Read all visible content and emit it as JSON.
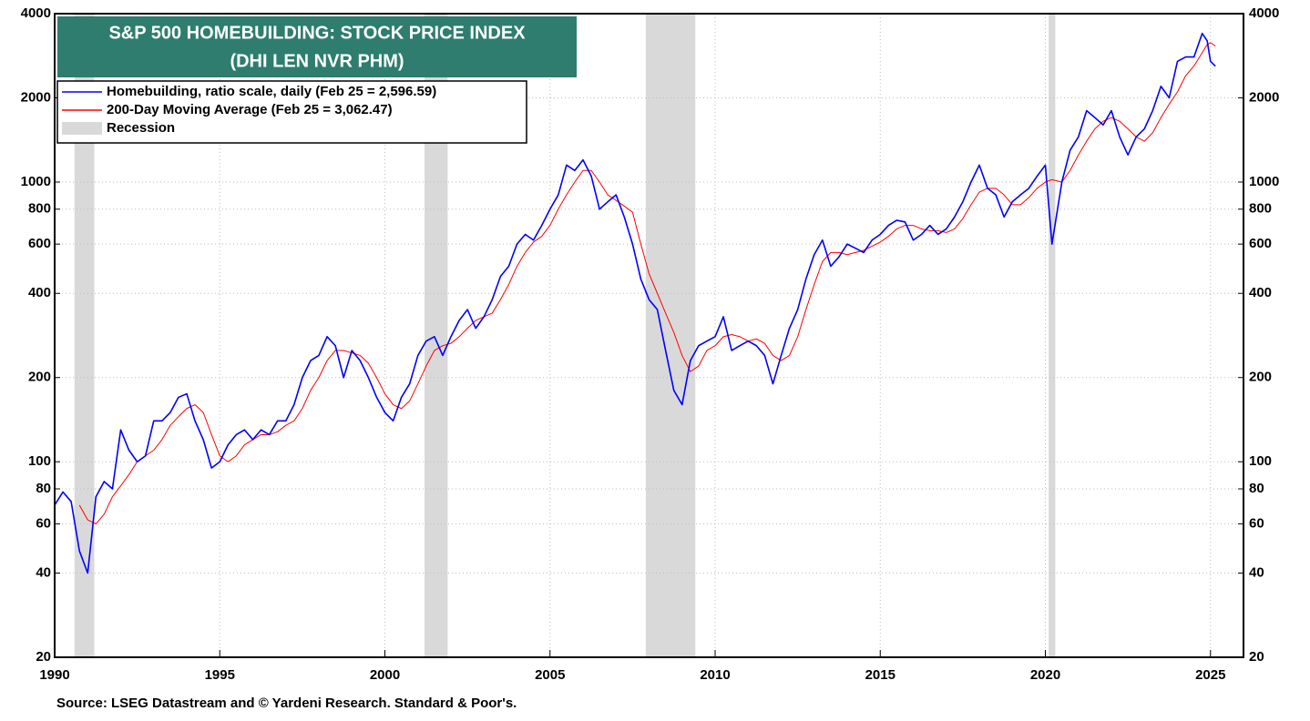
{
  "chart_data": {
    "type": "line",
    "title": "S&P 500 HOMEBUILDING: STOCK PRICE INDEX",
    "subtitle": "(DHI LEN NVR PHM)",
    "source": "Source: LSEG Datastream and © Yardeni Research. Standard & Poor's.",
    "log_scale": true,
    "grid": true,
    "xlim": [
      1990,
      2026
    ],
    "xticks": [
      1990,
      1995,
      2000,
      2005,
      2010,
      2015,
      2020,
      2025
    ],
    "ylim": [
      20,
      4000
    ],
    "yticks": [
      20,
      40,
      60,
      80,
      100,
      200,
      400,
      600,
      800,
      1000,
      2000,
      4000
    ],
    "recession_label": "Recession",
    "recession_color": "#d9d9d9",
    "recessions": [
      [
        1990.6,
        1991.2
      ],
      [
        2001.2,
        2001.9
      ],
      [
        2007.9,
        2009.4
      ],
      [
        2020.1,
        2020.3
      ]
    ],
    "x": [
      1990,
      1990.25,
      1990.5,
      1990.75,
      1991,
      1991.25,
      1991.5,
      1991.75,
      1992,
      1992.25,
      1992.5,
      1992.75,
      1993,
      1993.25,
      1993.5,
      1993.75,
      1994,
      1994.25,
      1994.5,
      1994.75,
      1995,
      1995.25,
      1995.5,
      1995.75,
      1996,
      1996.25,
      1996.5,
      1996.75,
      1997,
      1997.25,
      1997.5,
      1997.75,
      1998,
      1998.25,
      1998.5,
      1998.75,
      1999,
      1999.25,
      1999.5,
      1999.75,
      2000,
      2000.25,
      2000.5,
      2000.75,
      2001,
      2001.25,
      2001.5,
      2001.75,
      2002,
      2002.25,
      2002.5,
      2002.75,
      2003,
      2003.25,
      2003.5,
      2003.75,
      2004,
      2004.25,
      2004.5,
      2004.75,
      2005,
      2005.25,
      2005.5,
      2005.75,
      2006,
      2006.25,
      2006.5,
      2006.75,
      2007,
      2007.25,
      2007.5,
      2007.75,
      2008,
      2008.25,
      2008.5,
      2008.75,
      2009,
      2009.25,
      2009.5,
      2009.75,
      2010,
      2010.25,
      2010.5,
      2010.75,
      2011,
      2011.25,
      2011.5,
      2011.75,
      2012,
      2012.25,
      2012.5,
      2012.75,
      2013,
      2013.25,
      2013.5,
      2013.75,
      2014,
      2014.25,
      2014.5,
      2014.75,
      2015,
      2015.25,
      2015.5,
      2015.75,
      2016,
      2016.25,
      2016.5,
      2016.75,
      2017,
      2017.25,
      2017.5,
      2017.75,
      2018,
      2018.25,
      2018.5,
      2018.75,
      2019,
      2019.25,
      2019.5,
      2019.75,
      2020,
      2020.2,
      2020.5,
      2020.75,
      2021,
      2021.25,
      2021.5,
      2021.75,
      2022,
      2022.25,
      2022.5,
      2022.75,
      2023,
      2023.25,
      2023.5,
      2023.75,
      2024,
      2024.25,
      2024.5,
      2024.75,
      2024.9,
      2025,
      2025.15
    ],
    "series": [
      {
        "name": "Homebuilding, ratio scale, daily (Feb 25 = 2,596.59)",
        "color": "#0000ff",
        "width": 1.6,
        "values": [
          70,
          78,
          72,
          48,
          40,
          75,
          85,
          80,
          130,
          110,
          100,
          105,
          140,
          140,
          150,
          170,
          175,
          140,
          120,
          95,
          100,
          115,
          125,
          130,
          120,
          130,
          125,
          140,
          140,
          160,
          200,
          230,
          240,
          280,
          260,
          200,
          250,
          230,
          200,
          170,
          150,
          140,
          170,
          190,
          240,
          270,
          280,
          240,
          280,
          320,
          350,
          300,
          330,
          380,
          460,
          500,
          600,
          650,
          620,
          700,
          800,
          900,
          1150,
          1100,
          1200,
          1050,
          800,
          850,
          900,
          750,
          600,
          450,
          380,
          350,
          250,
          180,
          160,
          230,
          260,
          270,
          280,
          330,
          250,
          260,
          270,
          260,
          240,
          190,
          240,
          300,
          350,
          450,
          550,
          620,
          500,
          540,
          600,
          580,
          560,
          620,
          650,
          700,
          730,
          720,
          620,
          650,
          700,
          650,
          680,
          750,
          850,
          1000,
          1150,
          950,
          900,
          750,
          850,
          900,
          950,
          1050,
          1150,
          600,
          1000,
          1300,
          1450,
          1800,
          1700,
          1600,
          1800,
          1450,
          1250,
          1450,
          1550,
          1800,
          2200,
          2000,
          2700,
          2800,
          2800,
          3400,
          3200,
          2700,
          2596.59
        ]
      },
      {
        "name": "200-Day Moving Average (Feb 25 = 3,062.47)",
        "color": "#ff0000",
        "width": 1,
        "values": [
          null,
          null,
          null,
          70,
          62,
          60,
          65,
          75,
          82,
          90,
          100,
          105,
          110,
          120,
          135,
          145,
          155,
          160,
          150,
          125,
          105,
          100,
          105,
          115,
          120,
          125,
          125,
          128,
          135,
          140,
          155,
          180,
          200,
          230,
          250,
          250,
          245,
          240,
          225,
          200,
          175,
          160,
          155,
          165,
          190,
          220,
          250,
          260,
          265,
          280,
          300,
          320,
          330,
          340,
          380,
          430,
          500,
          560,
          610,
          640,
          700,
          800,
          900,
          1000,
          1100,
          1100,
          1000,
          900,
          860,
          820,
          780,
          600,
          470,
          400,
          340,
          290,
          240,
          210,
          220,
          250,
          260,
          280,
          285,
          280,
          270,
          275,
          265,
          240,
          230,
          240,
          280,
          350,
          430,
          520,
          560,
          560,
          550,
          560,
          570,
          590,
          610,
          640,
          680,
          700,
          700,
          680,
          670,
          670,
          660,
          680,
          740,
          830,
          920,
          950,
          950,
          900,
          830,
          830,
          880,
          950,
          1000,
          1020,
          1000,
          1100,
          1250,
          1400,
          1550,
          1650,
          1700,
          1650,
          1550,
          1450,
          1400,
          1500,
          1700,
          1900,
          2100,
          2400,
          2600,
          2900,
          3100,
          3150,
          3062.47
        ]
      }
    ]
  }
}
